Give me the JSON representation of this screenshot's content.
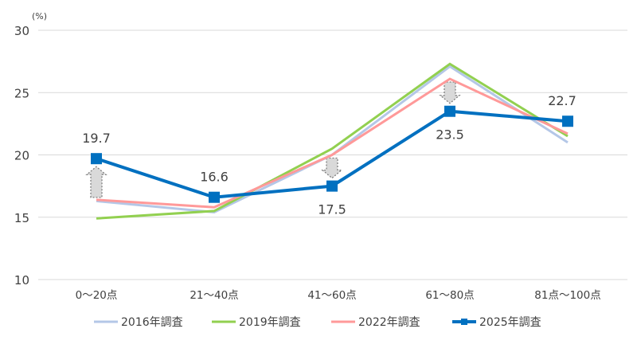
{
  "chart_data": {
    "type": "line",
    "ylabel": "(%)",
    "ylim": [
      10,
      30
    ],
    "yticks": [
      10,
      15,
      20,
      25,
      30
    ],
    "grid": true,
    "legend_position": "bottom",
    "categories": [
      "0～20点",
      "21～40点",
      "41～60点",
      "61～80点",
      "81点～100点"
    ],
    "series": [
      {
        "name": "2016年調査",
        "color": "#b4c7e7",
        "values": [
          16.3,
          15.4,
          20.0,
          27.1,
          21.0
        ],
        "marker": false
      },
      {
        "name": "2019年調査",
        "color": "#92d050",
        "values": [
          14.9,
          15.5,
          20.5,
          27.3,
          21.5
        ],
        "marker": false
      },
      {
        "name": "2022年調査",
        "color": "#ff9999",
        "values": [
          16.4,
          15.8,
          20.0,
          26.1,
          21.7
        ],
        "marker": false
      },
      {
        "name": "2025年調査",
        "color": "#0070c0",
        "values": [
          19.7,
          16.6,
          17.5,
          23.5,
          22.7
        ],
        "marker": true,
        "data_labels": [
          "19.7",
          "16.6",
          "17.5",
          "23.5",
          "22.7"
        ]
      }
    ],
    "change_arrows": [
      {
        "category": "0～20点",
        "direction": "up"
      },
      {
        "category": "41～60点",
        "direction": "down"
      },
      {
        "category": "61～80点",
        "direction": "down"
      }
    ]
  }
}
